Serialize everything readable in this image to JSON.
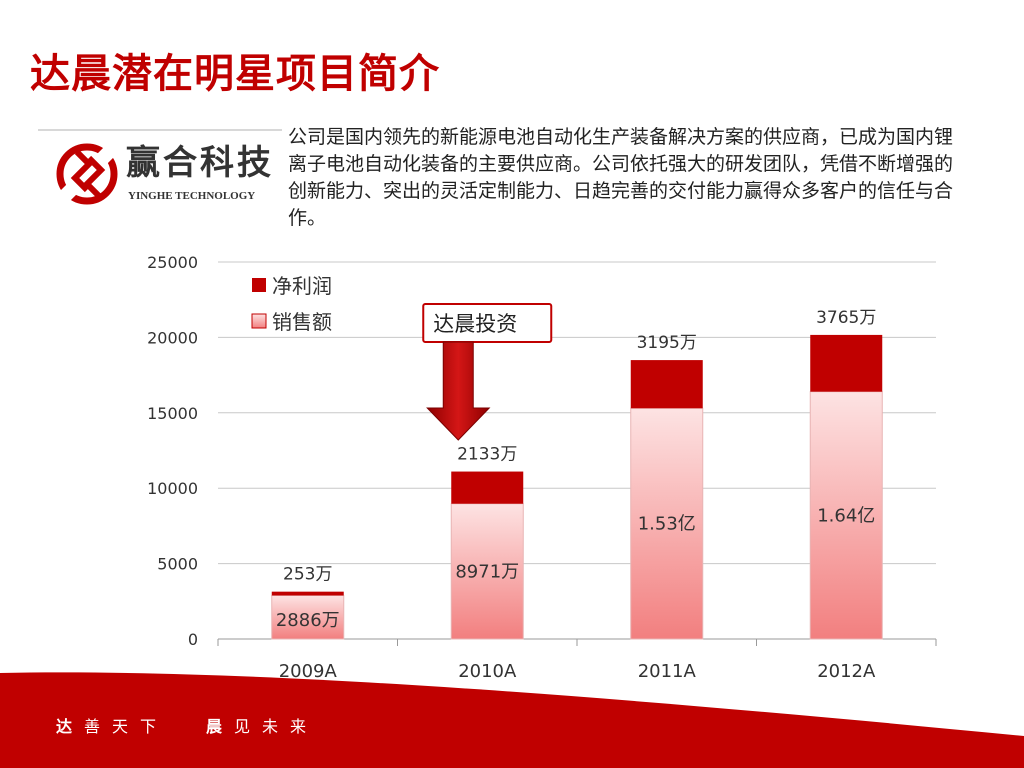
{
  "slide": {
    "title": "达晨潜在明星项目简介",
    "intro": "公司是国内领先的新能源电池自动化生产装备解决方案的供应商，已成为国内锂离子电池自动化装备的主要供应商。公司依托强大的研发团队，凭借不断增强的创新能力、突出的灵活定制能力、日趋完善的交付能力赢得众多客户的信任与合作。",
    "logo": {
      "cn": "赢合科技",
      "en": "YINGHE TECHNOLOGY"
    },
    "footer": {
      "left_bold": "达",
      "left_rest": "善天下",
      "right_bold": "晨",
      "right_rest": "见未来"
    },
    "colors": {
      "accent": "#c00000",
      "sales_top": "#fde3e3",
      "sales_bottom": "#f27f7f"
    }
  },
  "chart_data": {
    "type": "bar",
    "stacked": true,
    "categories": [
      "2009A",
      "2010A",
      "2011A",
      "2012A"
    ],
    "series": [
      {
        "name": "销售额",
        "values": [
          2886,
          8971,
          15300,
          16400
        ],
        "labels": [
          "2886万",
          "8971万",
          "1.53亿",
          "1.64亿"
        ],
        "color": "#f4a0a0"
      },
      {
        "name": "净利润",
        "values": [
          253,
          2133,
          3195,
          3765
        ],
        "labels": [
          "253万",
          "2133万",
          "3195万",
          "3765万"
        ],
        "color": "#c00000"
      }
    ],
    "ylim": [
      0,
      25000
    ],
    "yticks": [
      0,
      5000,
      10000,
      15000,
      20000,
      25000
    ],
    "grid": true,
    "legend": "top-left",
    "annotation": {
      "text": "达晨投资",
      "category": "2010A"
    }
  }
}
